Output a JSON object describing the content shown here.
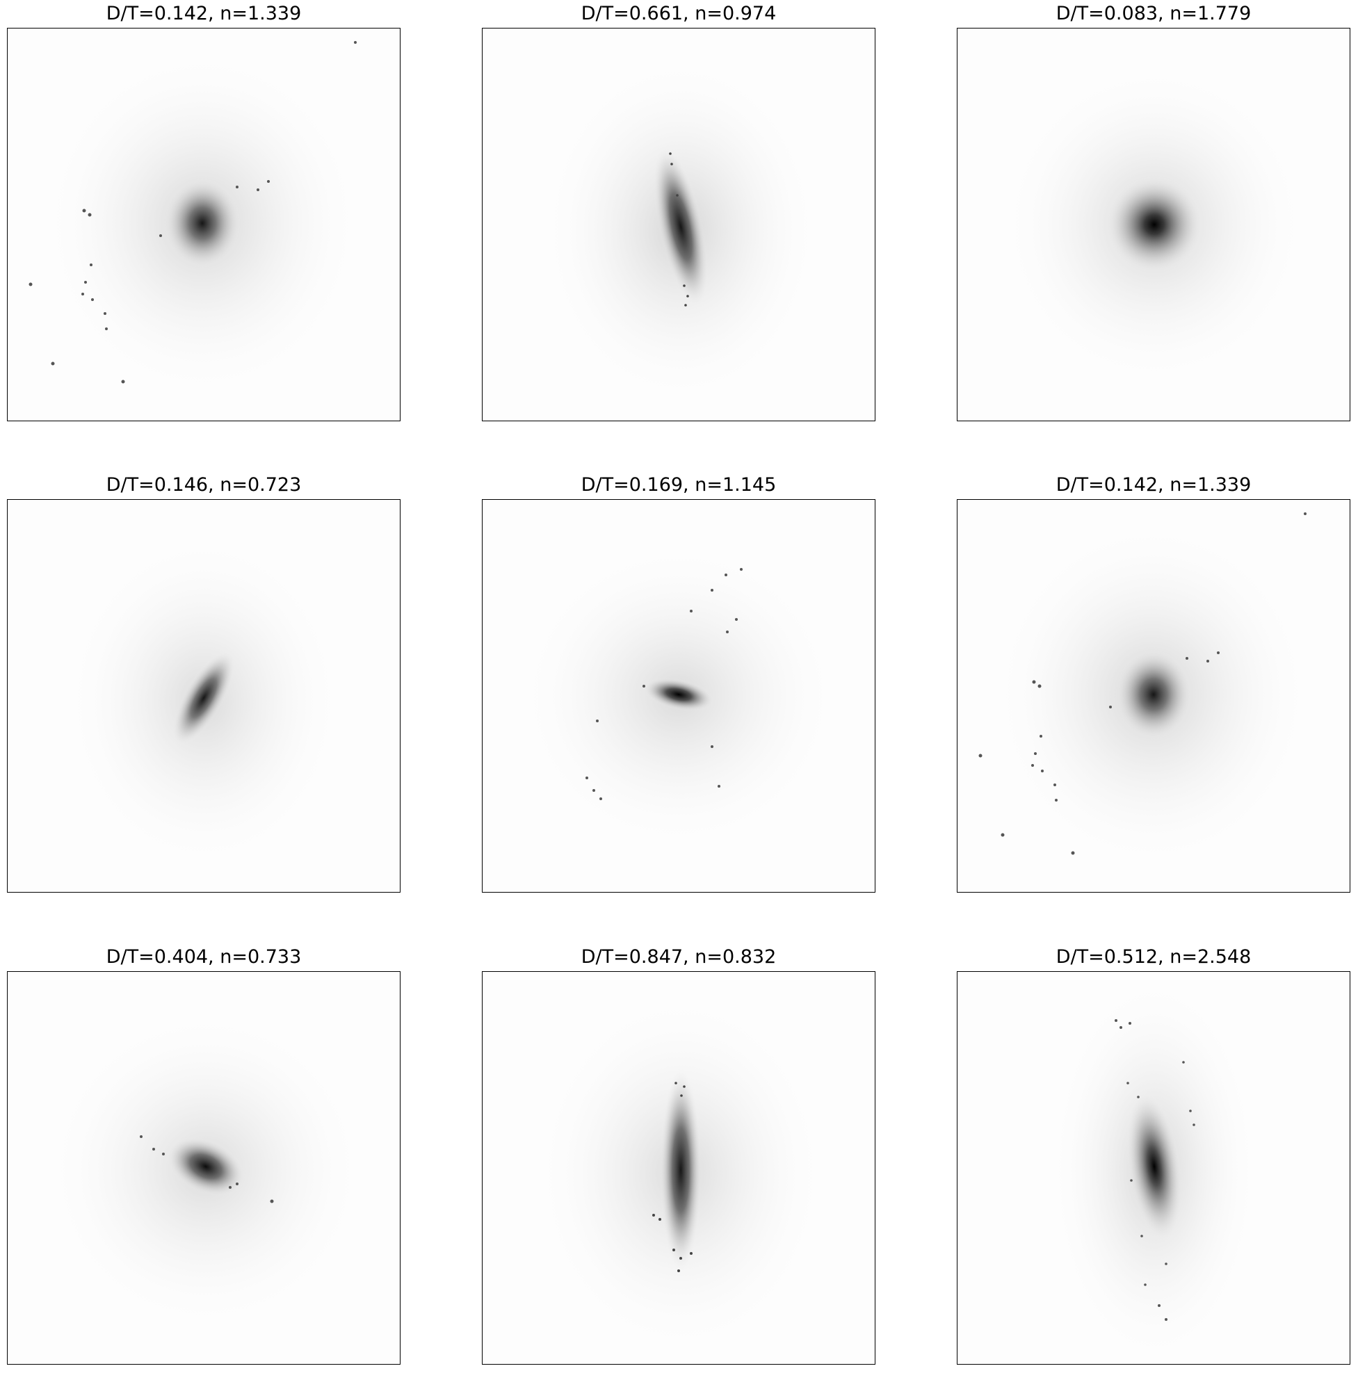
{
  "panels": [
    {
      "title": "D/T=0.142, n=1.339"
    },
    {
      "title": "D/T=0.661, n=0.974"
    },
    {
      "title": "D/T=0.083, n=1.779"
    },
    {
      "title": "D/T=0.146, n=0.723"
    },
    {
      "title": "D/T=0.169, n=1.145"
    },
    {
      "title": "D/T=0.142, n=1.339"
    },
    {
      "title": "D/T=0.404, n=0.733"
    },
    {
      "title": "D/T=0.847, n=0.832"
    },
    {
      "title": "D/T=0.512, n=2.548"
    }
  ]
}
